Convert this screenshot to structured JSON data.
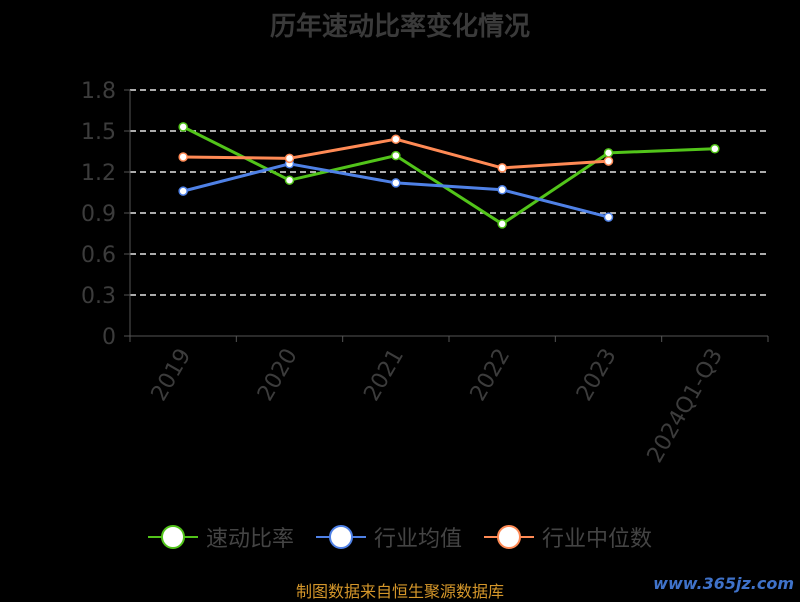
{
  "chart_data": {
    "type": "line",
    "title": "历年速动比率变化情况",
    "categories": [
      "2019",
      "2020",
      "2021",
      "2022",
      "2023",
      "2024Q1-Q3"
    ],
    "ylim": [
      0,
      1.8
    ],
    "yticks": [
      "0",
      "0.3",
      "0.6",
      "0.9",
      "1.2",
      "1.5",
      "1.8"
    ],
    "grid": true,
    "legend_position": "bottom",
    "series": [
      {
        "name": "速动比率",
        "color": "#52c41a",
        "values": [
          1.53,
          1.14,
          1.32,
          0.82,
          1.34,
          1.37
        ]
      },
      {
        "name": "行业均值",
        "color": "#4f81e6",
        "values": [
          1.06,
          1.26,
          1.12,
          1.07,
          0.87,
          null
        ]
      },
      {
        "name": "行业中位数",
        "color": "#ff8a55",
        "values": [
          1.31,
          1.3,
          1.44,
          1.23,
          1.28,
          null
        ]
      }
    ]
  },
  "source_note": "制图数据来自恒生聚源数据库",
  "watermark": "www.365jz.com"
}
